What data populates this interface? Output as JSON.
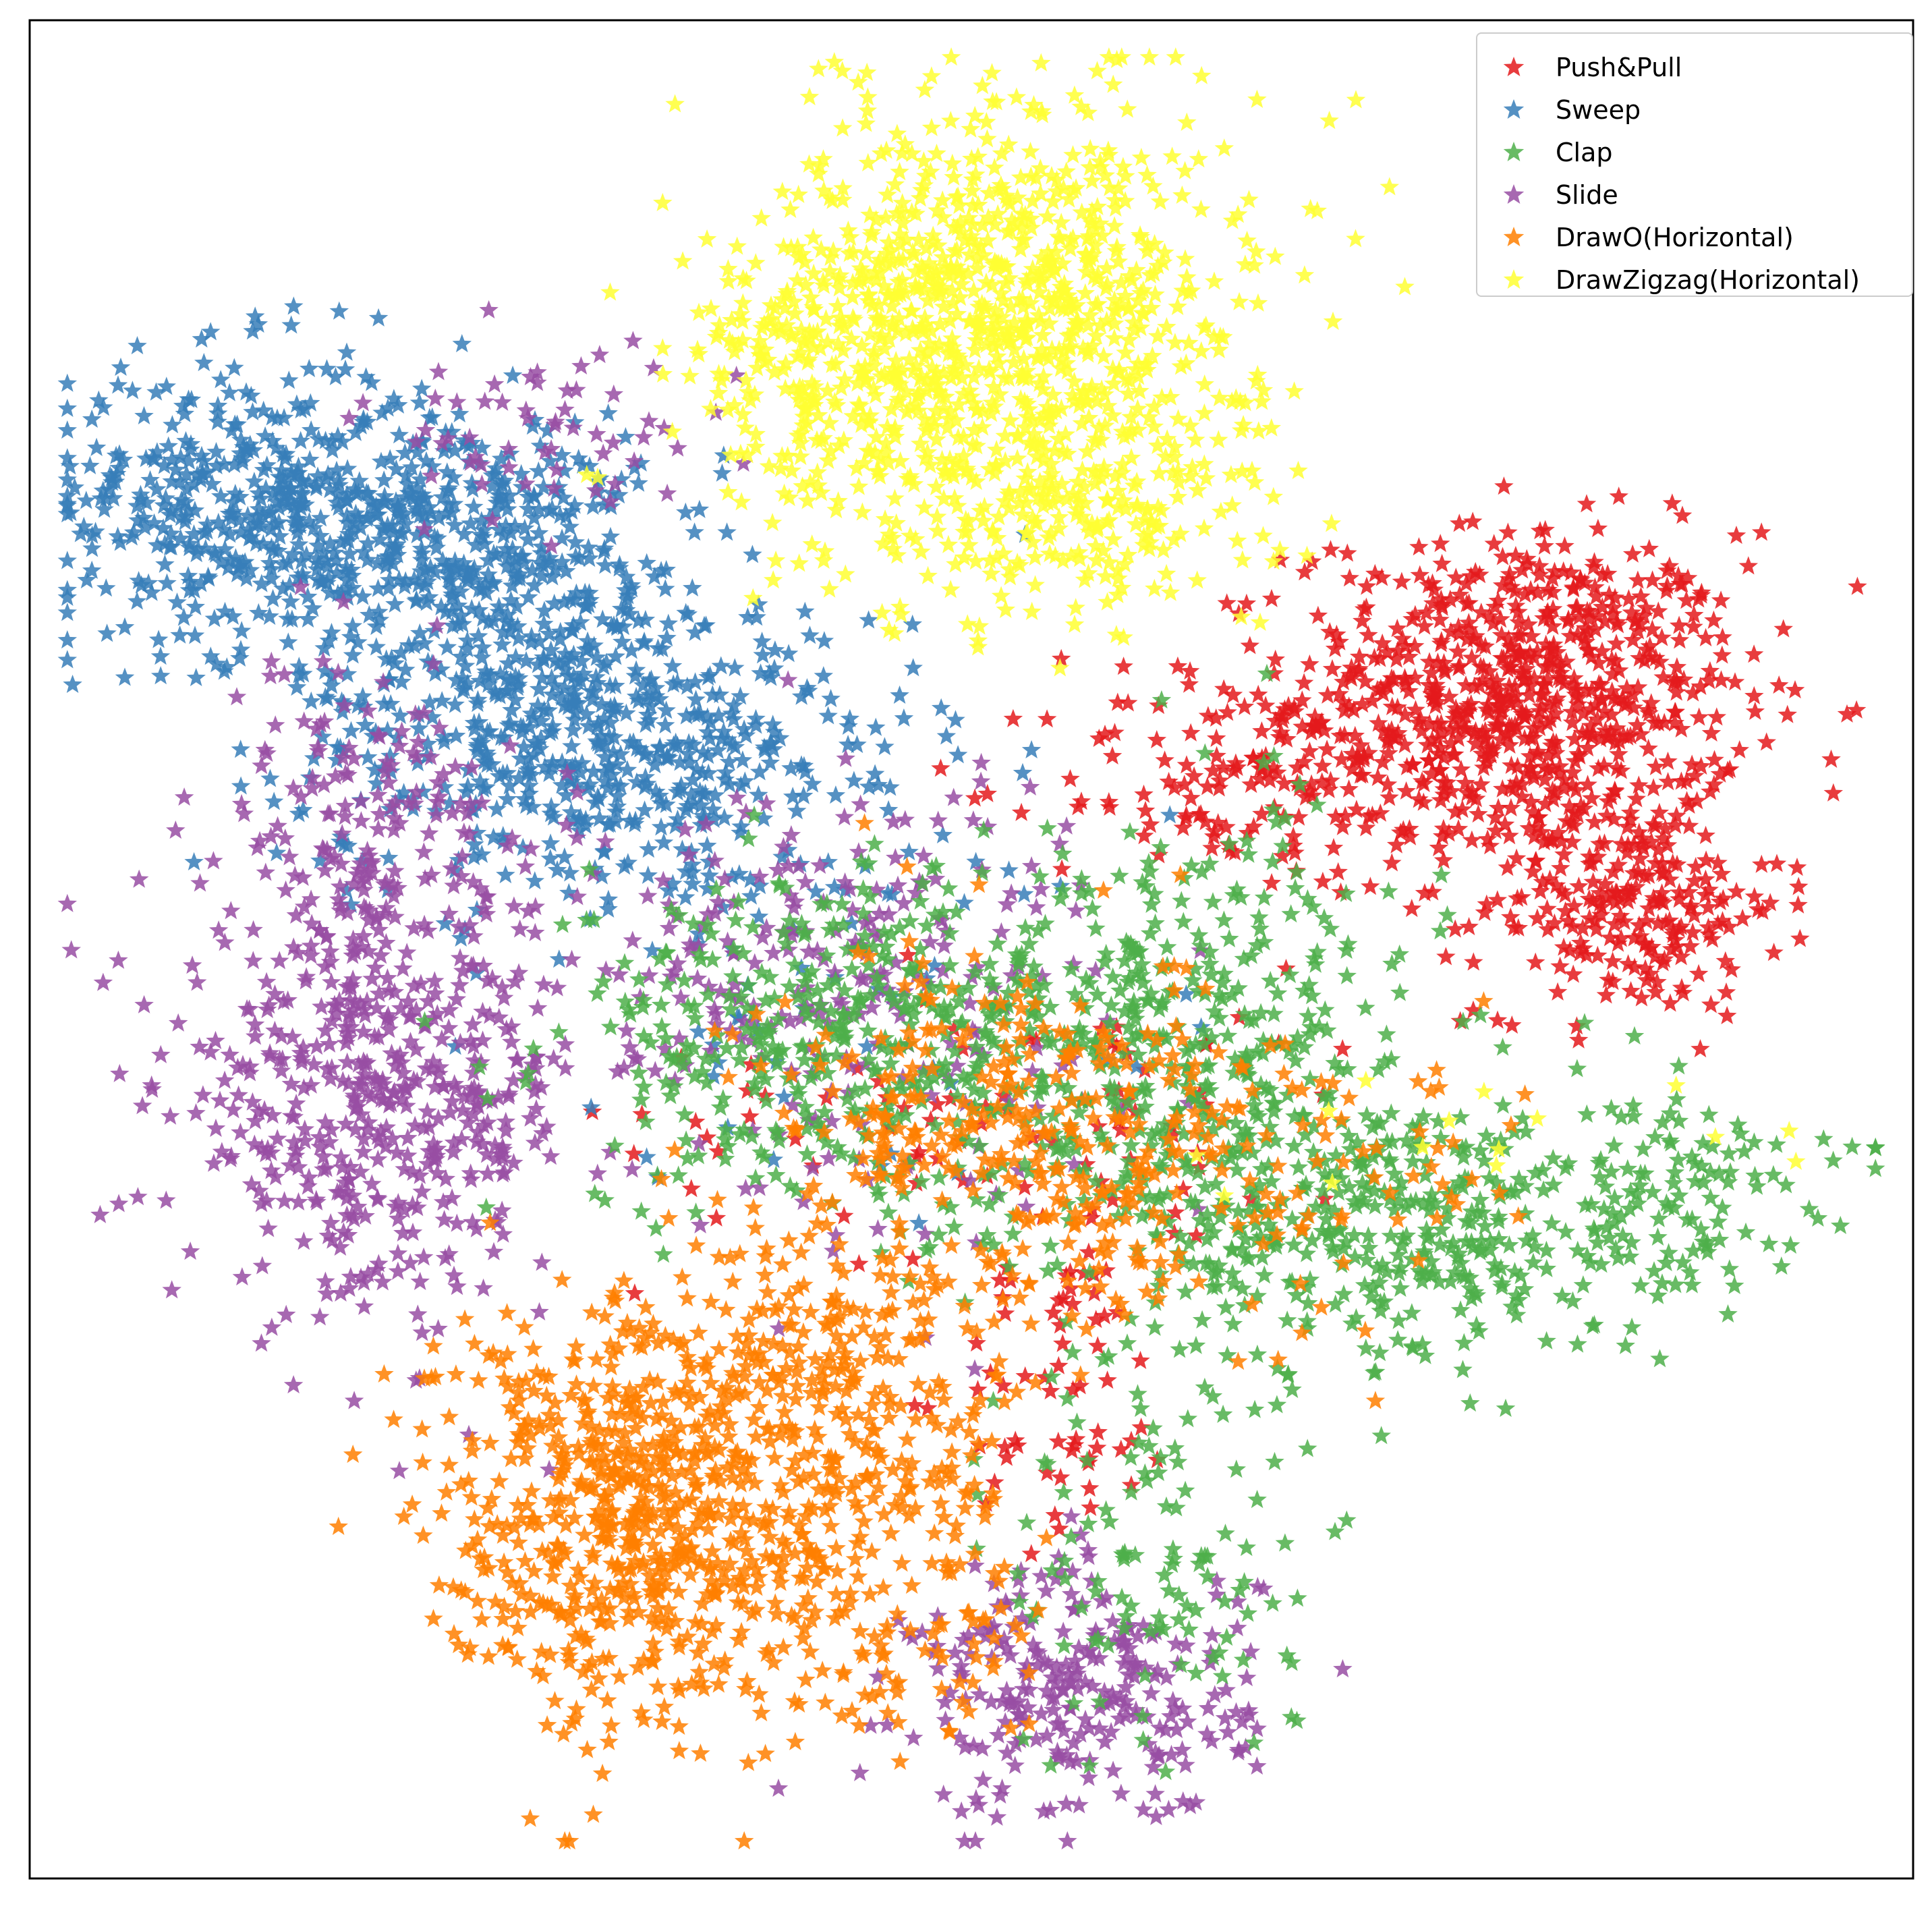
{
  "chart_data": {
    "type": "scatter",
    "title": "",
    "xlabel": "",
    "ylabel": "",
    "xlim": [
      -100,
      100
    ],
    "ylim": [
      -100,
      100
    ],
    "x_ticks_visible": false,
    "y_ticks_visible": false,
    "grid": false,
    "legend_position": "top-right",
    "marker": "star",
    "series": [
      {
        "name": "Push&Pull",
        "color": "#e41a1c",
        "clusters": [
          {
            "center": [
              58,
              27
            ],
            "spread": [
              12,
              9
            ],
            "count": 720
          },
          {
            "center": [
              70,
              5
            ],
            "spread": [
              8,
              6
            ],
            "count": 220
          },
          {
            "center": [
              28,
              18
            ],
            "spread": [
              10,
              6
            ],
            "count": 120
          },
          {
            "center": [
              10,
              -48
            ],
            "spread": [
              6,
              8
            ],
            "count": 60
          },
          {
            "center": [
              5,
              -18
            ],
            "spread": [
              20,
              8
            ],
            "count": 90
          }
        ]
      },
      {
        "name": "Sweep",
        "color": "#377eb8",
        "clusters": [
          {
            "center": [
              -78,
              48
            ],
            "spread": [
              10,
              8
            ],
            "count": 380
          },
          {
            "center": [
              -55,
              45
            ],
            "spread": [
              10,
              7
            ],
            "count": 360
          },
          {
            "center": [
              -45,
              25
            ],
            "spread": [
              14,
              9
            ],
            "count": 460
          },
          {
            "center": [
              -30,
              20
            ],
            "spread": [
              12,
              8
            ],
            "count": 160
          },
          {
            "center": [
              -15,
              0
            ],
            "spread": [
              18,
              12
            ],
            "count": 70
          }
        ]
      },
      {
        "name": "Slide",
        "color": "#984ea3",
        "clusters": [
          {
            "center": [
              -63,
              -15
            ],
            "spread": [
              11,
              12
            ],
            "count": 520
          },
          {
            "center": [
              -65,
              15
            ],
            "spread": [
              7,
              8
            ],
            "count": 120
          },
          {
            "center": [
              -15,
              -3
            ],
            "spread": [
              15,
              12
            ],
            "count": 260
          },
          {
            "center": [
              12,
              -80
            ],
            "spread": [
              9,
              7
            ],
            "count": 260
          },
          {
            "center": [
              -45,
              55
            ],
            "spread": [
              10,
              5
            ],
            "count": 60
          }
        ]
      },
      {
        "name": "Clap",
        "color": "#4daf4a",
        "clusters": [
          {
            "center": [
              -15,
              -10
            ],
            "spread": [
              14,
              9
            ],
            "count": 380
          },
          {
            "center": [
              22,
              -10
            ],
            "spread": [
              13,
              12
            ],
            "count": 420
          },
          {
            "center": [
              45,
              -30
            ],
            "spread": [
              15,
              8
            ],
            "count": 380
          },
          {
            "center": [
              20,
              -65
            ],
            "spread": [
              8,
              12
            ],
            "count": 120
          },
          {
            "center": [
              75,
              -25
            ],
            "spread": [
              8,
              5
            ],
            "count": 90
          }
        ]
      },
      {
        "name": "DrawO(Horizontal)",
        "color": "#ff7f00",
        "clusters": [
          {
            "center": [
              -35,
              -60
            ],
            "spread": [
              11,
              12
            ],
            "count": 720
          },
          {
            "center": [
              -10,
              -50
            ],
            "spread": [
              8,
              10
            ],
            "count": 220
          },
          {
            "center": [
              5,
              -20
            ],
            "spread": [
              14,
              10
            ],
            "count": 330
          },
          {
            "center": [
              -5,
              -75
            ],
            "spread": [
              8,
              6
            ],
            "count": 80
          },
          {
            "center": [
              35,
              -25
            ],
            "spread": [
              12,
              7
            ],
            "count": 70
          }
        ]
      },
      {
        "name": "DrawZigzag(Horizontal)",
        "color": "#ffff33",
        "clusters": [
          {
            "center": [
              4,
              70
            ],
            "spread": [
              13,
              11
            ],
            "count": 820
          },
          {
            "center": [
              -15,
              62
            ],
            "spread": [
              8,
              7
            ],
            "count": 180
          },
          {
            "center": [
              10,
              48
            ],
            "spread": [
              10,
              6
            ],
            "count": 200
          },
          {
            "center": [
              0,
              42
            ],
            "spread": [
              12,
              4
            ],
            "count": 40
          },
          {
            "center": [
              55,
              -20
            ],
            "spread": [
              20,
              4
            ],
            "count": 15
          }
        ]
      }
    ]
  }
}
